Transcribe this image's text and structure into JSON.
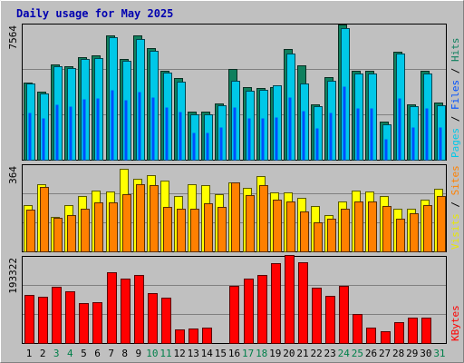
{
  "chart_data": [
    {
      "type": "bar",
      "title": "Daily usage for May 2025",
      "ymax_label": "7564",
      "ylim": [
        0,
        7564
      ],
      "legend": [
        {
          "text": "Pages",
          "color": "#00c8e8"
        },
        {
          "text": "Files",
          "color": "#0050ff"
        },
        {
          "text": "Hits",
          "color": "#10805e"
        }
      ],
      "categories": [
        "1",
        "2",
        "3",
        "4",
        "5",
        "6",
        "7",
        "8",
        "9",
        "10",
        "11",
        "12",
        "13",
        "14",
        "15",
        "16",
        "17",
        "18",
        "19",
        "20",
        "21",
        "22",
        "23",
        "24",
        "25",
        "26",
        "27",
        "28",
        "29",
        "30",
        "31"
      ],
      "weekend_days": [
        "3",
        "4",
        "10",
        "11",
        "17",
        "18",
        "24",
        "25",
        "31"
      ],
      "series": [
        {
          "name": "Hits",
          "color": "#10805e",
          "values": [
            4300,
            3800,
            5300,
            5200,
            5700,
            5800,
            6900,
            5600,
            6900,
            6200,
            4950,
            4550,
            2650,
            2650,
            3150,
            5050,
            4050,
            4000,
            4050,
            6150,
            5250,
            3100,
            4600,
            7500,
            4950,
            4950,
            2100,
            6000,
            3100,
            4950,
            3200
          ]
        },
        {
          "name": "Pages",
          "color": "#00c8e8",
          "values": [
            4250,
            3700,
            5200,
            5100,
            5600,
            5650,
            6800,
            5500,
            6700,
            6050,
            4850,
            4350,
            2500,
            2500,
            3050,
            4400,
            3850,
            3900,
            4150,
            5900,
            4250,
            3000,
            4400,
            7300,
            4800,
            4800,
            1950,
            5900,
            3000,
            4800,
            3050
          ]
        },
        {
          "name": "Files",
          "color": "#0050ff",
          "values": [
            2600,
            2300,
            3100,
            3000,
            3400,
            3450,
            3900,
            3350,
            3800,
            3500,
            2900,
            2650,
            1500,
            1500,
            1800,
            2900,
            2300,
            2300,
            2350,
            3500,
            2700,
            1750,
            2600,
            4100,
            2850,
            2850,
            1150,
            3450,
            1800,
            2850,
            1800
          ]
        }
      ]
    },
    {
      "type": "bar",
      "ymax_label": "364",
      "ylim": [
        0,
        364
      ],
      "legend": [
        {
          "text": "Visits",
          "color": "#e8e800"
        },
        {
          "text": "Sites",
          "color": "#ff8000"
        }
      ],
      "categories": [
        "1",
        "2",
        "3",
        "4",
        "5",
        "6",
        "7",
        "8",
        "9",
        "10",
        "11",
        "12",
        "13",
        "14",
        "15",
        "16",
        "17",
        "18",
        "19",
        "20",
        "21",
        "22",
        "23",
        "24",
        "25",
        "26",
        "27",
        "28",
        "29",
        "30",
        "31"
      ],
      "series": [
        {
          "name": "Visits",
          "color": "#ffff00",
          "values": [
            195,
            280,
            145,
            195,
            230,
            255,
            250,
            345,
            305,
            320,
            295,
            230,
            280,
            275,
            240,
            290,
            265,
            315,
            245,
            245,
            225,
            190,
            150,
            210,
            255,
            250,
            230,
            180,
            180,
            215,
            260
          ]
        },
        {
          "name": "Sites",
          "color": "#ff8000",
          "values": [
            175,
            270,
            140,
            150,
            180,
            205,
            205,
            240,
            280,
            275,
            185,
            180,
            180,
            200,
            185,
            290,
            235,
            275,
            215,
            210,
            165,
            120,
            135,
            180,
            210,
            210,
            190,
            135,
            160,
            195,
            230
          ]
        }
      ]
    },
    {
      "type": "bar",
      "ymax_label": "193322",
      "ylim": [
        0,
        193322
      ],
      "legend": [
        {
          "text": "KBytes",
          "color": "#ff0000"
        }
      ],
      "categories": [
        "1",
        "2",
        "3",
        "4",
        "5",
        "6",
        "7",
        "8",
        "9",
        "10",
        "11",
        "12",
        "13",
        "14",
        "15",
        "16",
        "17",
        "18",
        "19",
        "20",
        "21",
        "22",
        "23",
        "24",
        "25",
        "26",
        "27",
        "28",
        "29",
        "30",
        "31"
      ],
      "series": [
        {
          "name": "KBytes",
          "color": "#ff0000",
          "values": [
            107000,
            102000,
            124000,
            115000,
            88000,
            91000,
            158000,
            142000,
            151000,
            111000,
            100000,
            31000,
            33000,
            34000,
            0,
            126000,
            142000,
            151000,
            177000,
            195000,
            180000,
            123000,
            105000,
            127000,
            65000,
            35000,
            26000,
            47000,
            57000,
            56000,
            0
          ]
        }
      ]
    }
  ]
}
